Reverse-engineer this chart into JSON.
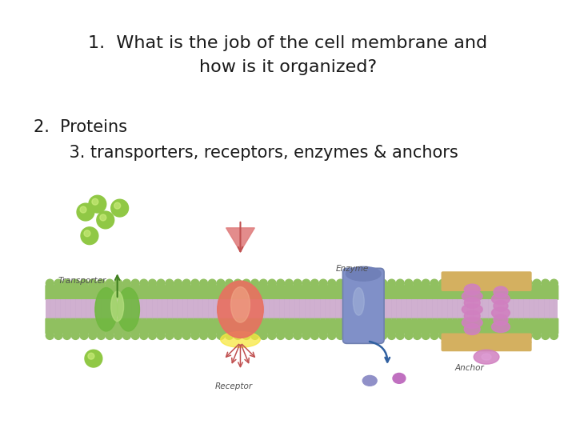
{
  "bg_color": "#ffffff",
  "line1": "1.  What is the job of the cell membrane and",
  "line2": "how is it organized?",
  "line3": "2.  Proteins",
  "line4": "    3. transporters, receptors, enzymes & anchors",
  "text_color": "#1a1a1a",
  "font_size_main": 16,
  "font_size_sub": 15,
  "membrane_color_outer": "#90c060",
  "membrane_color_inner": "#d0b0d0",
  "transporter_color": "#70b840",
  "receptor_color": "#e87060",
  "enzyme_color": "#8090c8",
  "anchor_color": "#d080c0",
  "anchor_rope_color": "#d4b060",
  "label_color": "#505050",
  "arrow_color": "#c05050",
  "green_mol_color": "#90c845"
}
